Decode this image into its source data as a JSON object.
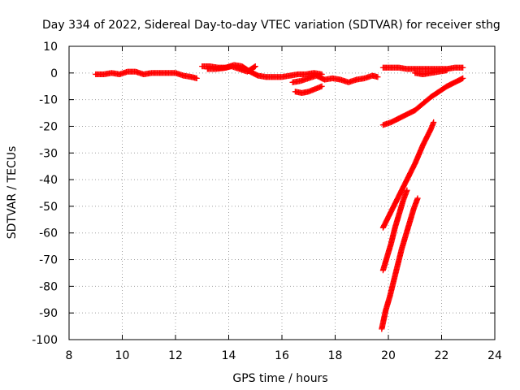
{
  "chart_data": {
    "type": "scatter",
    "title": "Day 334 of 2022, Sidereal Day-to-day VTEC variation (SDTVAR) for receiver sthg",
    "xlabel": "GPS time / hours",
    "ylabel": "SDTVAR / TECUs",
    "xlim": [
      8,
      24
    ],
    "ylim": [
      -100,
      10
    ],
    "xticks": [
      8,
      10,
      12,
      14,
      16,
      18,
      20,
      22,
      24
    ],
    "yticks": [
      10,
      0,
      -10,
      -20,
      -30,
      -40,
      -50,
      -60,
      -70,
      -80,
      -90,
      -100
    ],
    "grid": true,
    "marker": "plus",
    "color": "#ff0000",
    "series": [
      {
        "x": [
          9.0,
          9.3,
          9.6,
          9.9,
          10.2,
          10.5,
          10.8,
          11.1,
          11.4,
          11.7,
          12.0,
          12.3,
          12.6,
          12.8
        ],
        "y": [
          -0.5,
          -0.5,
          0,
          -0.5,
          0.5,
          0.5,
          -0.5,
          0,
          0,
          0,
          0,
          -1,
          -1.5,
          -2
        ]
      },
      {
        "x": [
          13.0,
          13.3,
          13.6,
          13.9,
          14.2,
          14.5,
          14.8,
          15.1,
          15.4,
          15.7,
          16.0,
          16.3,
          16.6,
          16.9,
          17.2,
          17.5
        ],
        "y": [
          2.5,
          2.5,
          2,
          2,
          3,
          2.5,
          0.5,
          -1,
          -1.5,
          -1.5,
          -1.5,
          -1,
          -0.5,
          -0.5,
          0,
          -0.5
        ]
      },
      {
        "x": [
          13.2,
          13.5,
          13.8,
          14.1,
          14.4,
          14.7,
          15.0
        ],
        "y": [
          1.5,
          1.5,
          1.8,
          2.5,
          1.5,
          0.5,
          2.5
        ]
      },
      {
        "x": [
          16.4,
          16.7,
          17.0,
          17.3,
          17.6,
          17.9,
          18.2,
          18.5,
          18.8,
          19.1,
          19.4,
          19.6
        ],
        "y": [
          -3.5,
          -3,
          -2,
          -1,
          -2.5,
          -2,
          -2.5,
          -3.5,
          -2.5,
          -2,
          -1,
          -1.5
        ]
      },
      {
        "x": [
          16.5,
          16.75,
          17.0,
          17.25,
          17.5
        ],
        "y": [
          -7,
          -7.5,
          -7,
          -6,
          -5
        ]
      },
      {
        "x": [
          19.8,
          20.1,
          20.4,
          20.7,
          21.0,
          21.3,
          21.6,
          21.9,
          22.2,
          22.5,
          22.8
        ],
        "y": [
          2,
          2,
          2,
          1.5,
          1.5,
          1.5,
          1.5,
          1.5,
          1.5,
          2,
          2
        ]
      },
      {
        "x": [
          21.0,
          21.3,
          21.6,
          21.9,
          22.2
        ],
        "y": [
          0,
          -0.5,
          0,
          0.5,
          1
        ]
      },
      {
        "x": [
          19.8,
          20.1,
          20.4,
          20.7,
          21.0,
          21.3,
          21.6,
          21.9,
          22.2,
          22.5,
          22.8
        ],
        "y": [
          -19.5,
          -18.5,
          -17,
          -15.5,
          -14,
          -11.5,
          -9,
          -7,
          -5,
          -3.5,
          -2
        ]
      },
      {
        "x": [
          19.8,
          20.1,
          20.4,
          20.7,
          21.0,
          21.3,
          21.6,
          21.7
        ],
        "y": [
          -58,
          -52,
          -46,
          -40,
          -34,
          -27,
          -21,
          -18.5
        ]
      },
      {
        "x": [
          19.8,
          19.95,
          20.1,
          20.25,
          20.4,
          20.55,
          20.7
        ],
        "y": [
          -74,
          -69,
          -64,
          -58,
          -53,
          -48,
          -44
        ]
      },
      {
        "x": [
          19.75,
          19.9,
          20.05,
          20.2,
          20.35,
          20.5,
          20.65,
          20.8,
          20.95,
          21.1
        ],
        "y": [
          -96,
          -89,
          -84,
          -78,
          -72,
          -66,
          -61,
          -56,
          -51,
          -47
        ]
      }
    ]
  }
}
